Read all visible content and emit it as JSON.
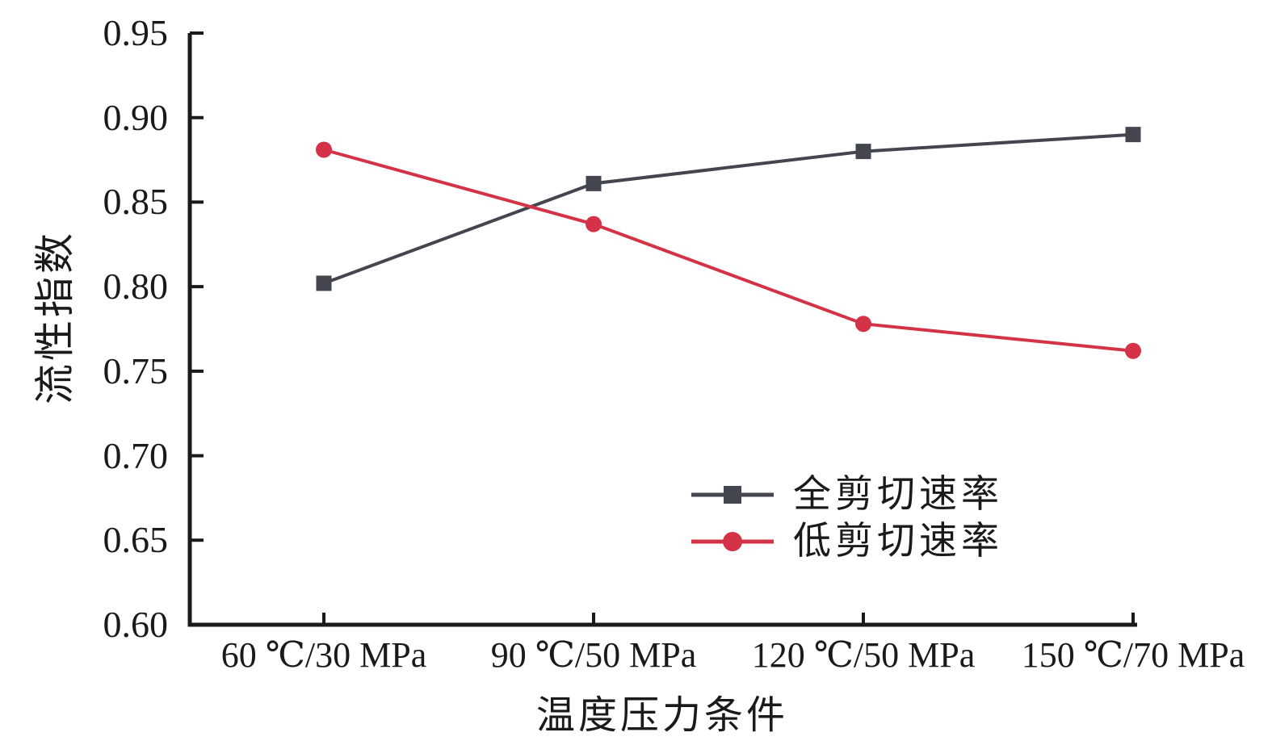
{
  "chart_data": {
    "type": "line",
    "title": "",
    "xlabel": "温度压力条件",
    "ylabel": "流性指数",
    "categories": [
      "60 ℃/30 MPa",
      "90 ℃/50 MPa",
      "120 ℃/50 MPa",
      "150 ℃/70 MPa"
    ],
    "series": [
      {
        "name": "全剪切速率",
        "marker": "square",
        "color": "#43464e",
        "values": [
          0.802,
          0.861,
          0.88,
          0.89
        ]
      },
      {
        "name": "低剪切速率",
        "marker": "circle",
        "color": "#d43246",
        "values": [
          0.881,
          0.837,
          0.778,
          0.762
        ]
      }
    ],
    "ylim": [
      0.6,
      0.95
    ],
    "ytick_step": 0.05,
    "ytick_labels": [
      "0.95",
      "0.90",
      "0.85",
      "0.80",
      "0.75",
      "0.70",
      "0.65",
      "0.60"
    ],
    "grid": false,
    "legend_position": "inside lower right",
    "axis_color": "#1a1a1a"
  }
}
